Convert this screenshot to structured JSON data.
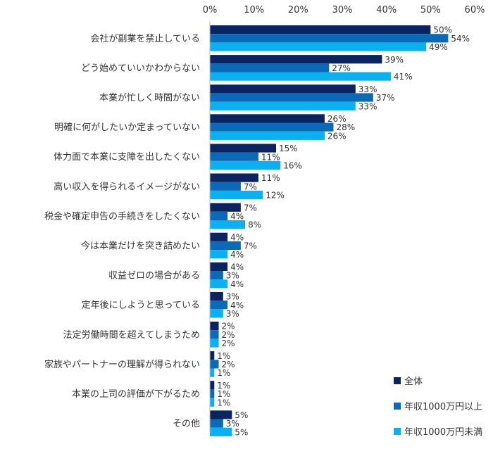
{
  "chart_data": {
    "type": "bar",
    "orientation": "horizontal",
    "categories": [
      "会社が副業を禁止している",
      "どう始めていいかわからない",
      "本業が忙しく時間がない",
      "明確に何がしたいか定まっていない",
      "体力面で本業に支障を出したくない",
      "高い収入を得られるイメージがない",
      "税金や確定申告の手続きをしたくない",
      "今は本業だけを突き詰めたい",
      "収益ゼロの場合がある",
      "定年後にしようと思っている",
      "法定労働時間を超えてしまうため",
      "家族やパートナーの理解が得られない",
      "本業の上司の評価が下がるため",
      "その他"
    ],
    "series": [
      {
        "name": "全体",
        "color": "#0a2361",
        "values": [
          50,
          39,
          33,
          26,
          15,
          11,
          7,
          4,
          4,
          3,
          2,
          1,
          1,
          5
        ]
      },
      {
        "name": "年収1000万円以上",
        "color": "#0b6ab8",
        "values": [
          54,
          27,
          37,
          28,
          11,
          7,
          4,
          7,
          3,
          4,
          2,
          2,
          1,
          3
        ]
      },
      {
        "name": "年収1000万円未満",
        "color": "#0ab0ef",
        "values": [
          49,
          41,
          33,
          26,
          16,
          12,
          8,
          4,
          4,
          3,
          2,
          1,
          1,
          5
        ]
      }
    ],
    "xlim": [
      0,
      60
    ],
    "xticks": [
      "0%",
      "10%",
      "20%",
      "30%",
      "40%",
      "50%",
      "60%"
    ],
    "value_suffix": "%",
    "grid": false,
    "legend_position": "bottom-right"
  }
}
